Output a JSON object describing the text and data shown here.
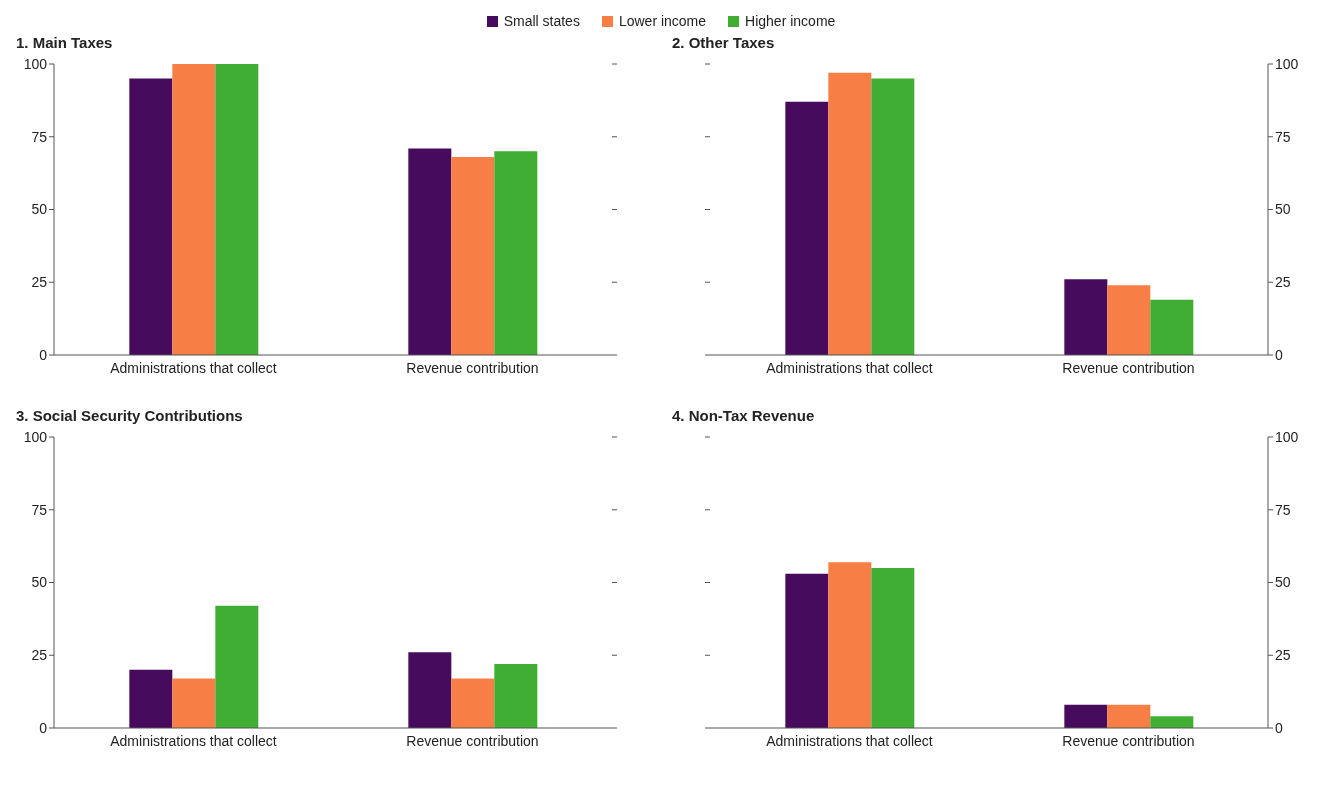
{
  "chart_data": [
    {
      "type": "bar",
      "title": "1. Main Taxes",
      "categories": [
        "Administrations that collect",
        "Revenue contribution"
      ],
      "legend": "top",
      "series": [
        {
          "name": "Small states",
          "color": "#470b5e",
          "values": [
            95,
            71
          ]
        },
        {
          "name": "Lower income",
          "color": "#f77f45",
          "values": [
            100,
            68
          ]
        },
        {
          "name": "Higher income",
          "color": "#40ae33",
          "values": [
            100,
            70
          ]
        }
      ],
      "ylim": [
        0,
        100
      ],
      "yticks": [
        0,
        25,
        50,
        75,
        100
      ]
    },
    {
      "type": "bar",
      "title": "2. Other Taxes",
      "categories": [
        "Administrations that collect",
        "Revenue contribution"
      ],
      "series": [
        {
          "color": "#470b5e",
          "values": [
            87,
            26
          ],
          "axis": "y2"
        },
        {
          "color": "#f77f45",
          "values": [
            97,
            24
          ],
          "axis": "y2"
        },
        {
          "color": "#40ae33",
          "values": [
            95,
            19
          ],
          "axis": "y2"
        }
      ],
      "y2lim": [
        0,
        100
      ],
      "y2ticks": [
        0,
        25,
        50,
        75,
        100
      ]
    },
    {
      "type": "bar",
      "title": "3. Social Security Contributions",
      "categories": [
        "Administrations that collect",
        "Revenue contribution"
      ],
      "series": [
        {
          "color": "#470b5e",
          "values": [
            20,
            26
          ]
        },
        {
          "color": "#f77f45",
          "values": [
            17,
            17
          ]
        },
        {
          "color": "#40ae33",
          "values": [
            42,
            22
          ]
        }
      ],
      "ylim": [
        0,
        100
      ],
      "yticks": [
        0,
        25,
        50,
        75,
        100
      ]
    },
    {
      "type": "bar",
      "title": "4. Non-Tax Revenue",
      "categories": [
        "Administrations that collect",
        "Revenue contribution"
      ],
      "series": [
        {
          "color": "#470b5e",
          "values": [
            53,
            8
          ],
          "axis": "y2"
        },
        {
          "color": "#f77f45",
          "values": [
            57,
            8
          ],
          "axis": "y2"
        },
        {
          "color": "#40ae33",
          "values": [
            55,
            4
          ],
          "axis": "y2"
        }
      ],
      "y2lim": [
        0,
        100
      ],
      "y2ticks": [
        0,
        25,
        50,
        75,
        100
      ]
    }
  ]
}
